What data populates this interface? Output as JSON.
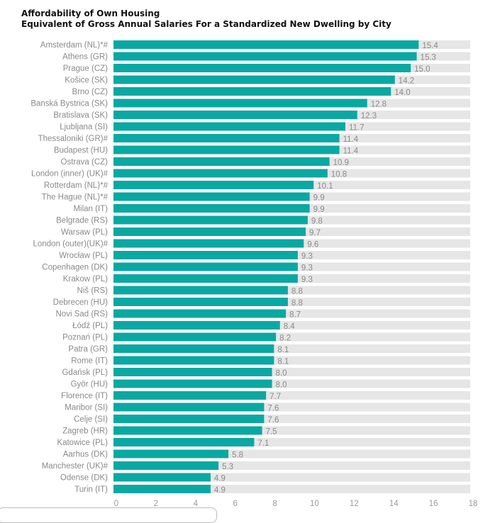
{
  "chart_data": {
    "type": "bar",
    "orientation": "horizontal",
    "title": "Affordability of Own Housing",
    "subtitle": "Equivalent of Gross Annual Salaries For a Standardized New Dwelling by City",
    "xlabel": "",
    "ylabel": "",
    "xlim": [
      0,
      18
    ],
    "xticks": [
      0,
      2,
      4,
      6,
      8,
      10,
      12,
      14,
      16,
      18
    ],
    "grid": false,
    "legend": "none",
    "colors": {
      "bar": "#0aa8a3",
      "track": "#e6e6e6",
      "label": "#8a8a8a"
    },
    "categories": [
      "Amsterdam (NL)*#",
      "Athens (GR)",
      "Prague (CZ)",
      "Košice (SK)",
      "Brno (CZ)",
      "Banská Bystrica (SK)",
      "Bratislava (SK)",
      "Ljubljana (SI)",
      "Thessaloniki (GR)#",
      "Budapest (HU)",
      "Ostrava (CZ)",
      "London (inner) (UK)#",
      "Rotterdam (NL)*#",
      "The Hague (NL)*#",
      "Milan (IT)",
      "Belgrade (RS)",
      "Warsaw (PL)",
      "London (outer)(UK)#",
      "Wrocław (PL)",
      "Copenhagen (DK)",
      "Krakow (PL)",
      "Niš (RS)",
      "Debrecen (HU)",
      "Novi Sad (RS)",
      "Łódź (PL)",
      "Poznań (PL)",
      "Patra (GR)",
      "Rome (IT)",
      "Gdańsk (PL)",
      "Györ (HU)",
      "Florence (IT)",
      "Maribor (SI)",
      "Celje (SI)",
      "Zagreb (HR)",
      "Katowice (PL)",
      "Aarhus (DK)",
      "Manchester (UK)#",
      "Odense (DK)",
      "Turin (IT)"
    ],
    "values": [
      15.4,
      15.3,
      15.0,
      14.2,
      14.0,
      12.8,
      12.3,
      11.7,
      11.4,
      11.4,
      10.9,
      10.8,
      10.1,
      9.9,
      9.9,
      9.8,
      9.7,
      9.6,
      9.3,
      9.3,
      9.3,
      8.8,
      8.8,
      8.7,
      8.4,
      8.2,
      8.1,
      8.1,
      8.0,
      8.0,
      7.7,
      7.6,
      7.6,
      7.5,
      7.1,
      5.8,
      5.3,
      4.9,
      4.9
    ],
    "value_labels": [
      "15.4",
      "15.3",
      "15.0",
      "14.2",
      "14.0",
      "12.8",
      "12.3",
      "11.7",
      "11.4",
      "11.4",
      "10.9",
      "10.8",
      "10.1",
      "9.9",
      "9.9",
      "9.8",
      "9.7",
      "9.6",
      "9.3",
      "9.3",
      "9.3",
      "8.8",
      "8.8",
      "8.7",
      "8.4",
      "8.2",
      "8.1",
      "8.1",
      "8.0",
      "8.0",
      "7.7",
      "7.6",
      "7.6",
      "7.5",
      "7.1",
      "5.8",
      "5.3",
      "4.9",
      "4.9"
    ]
  }
}
